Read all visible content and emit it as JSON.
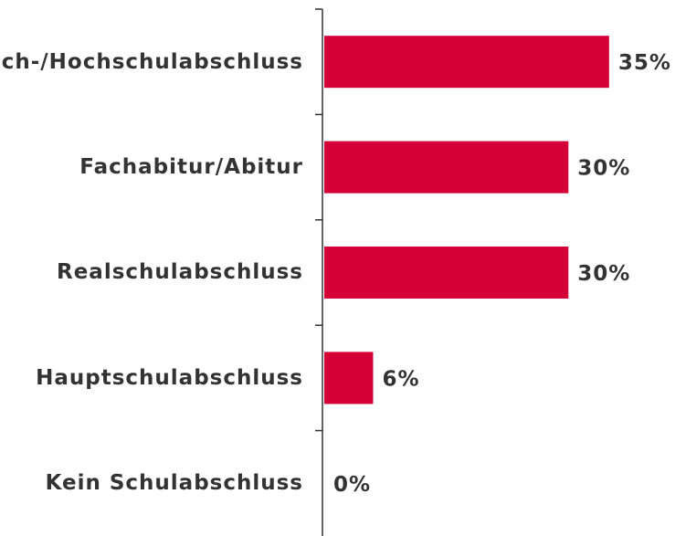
{
  "chart_data": {
    "type": "bar",
    "orientation": "horizontal",
    "categories": [
      "Fach-/Hochschulabschluss",
      "Fachabitur/Abitur",
      "Realschulabschluss",
      "Hauptschulabschluss",
      "Kein Schulabschluss"
    ],
    "values": [
      35,
      30,
      30,
      6,
      0
    ],
    "value_labels": [
      "35%",
      "30%",
      "30%",
      "6%",
      "0%"
    ],
    "color": "#d40038",
    "xlim": [
      0,
      44
    ]
  }
}
